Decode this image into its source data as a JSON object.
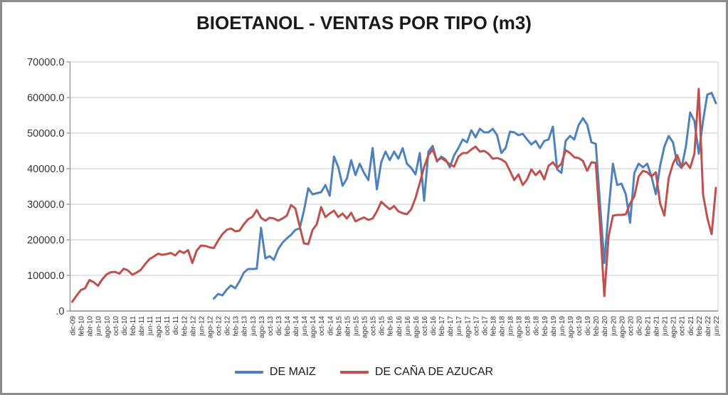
{
  "title": "BIOETANOL - VENTAS POR TIPO (m3)",
  "legend": {
    "items": [
      {
        "label": "DE MAIZ",
        "color": "#4F81BD"
      },
      {
        "label": "DE CAÑA DE AZUCAR",
        "color": "#C0504D"
      }
    ]
  },
  "y_axis": {
    "labels": [
      "70000.0",
      "60000.0",
      "50000.0",
      "40000.0",
      "30000.0",
      "20000.0",
      "10000.0",
      ".0"
    ],
    "values": [
      70000,
      60000,
      50000,
      40000,
      30000,
      20000,
      10000,
      0
    ]
  },
  "x_axis": {
    "labels": [
      "dic-09",
      "feb-10",
      "abr-10",
      "jun-10",
      "ago-10",
      "oct-10",
      "dic-10",
      "feb-11",
      "abr-11",
      "jun-11",
      "ago-11",
      "oct-11",
      "dic-11",
      "feb-12",
      "abr-12",
      "jun-12",
      "ago-12",
      "oct-12",
      "dic-12",
      "feb-13",
      "abr-13",
      "jun-13",
      "ago-13",
      "oct-13",
      "dic-13",
      "feb-14",
      "abr-14",
      "jun-14",
      "ago-14",
      "oct-14",
      "dic-14",
      "feb-15",
      "abr-15",
      "jun-15",
      "ago-15",
      "oct-15",
      "dic-15",
      "feb-16",
      "abr-16",
      "jun-16",
      "ago-16",
      "oct-16",
      "dic-16",
      "feb-17",
      "abr-17",
      "jun-17",
      "ago-17",
      "oct-17",
      "dic-17",
      "feb-18",
      "abr-18",
      "jun-18",
      "ago-18",
      "oct-18",
      "dic-18",
      "feb-19",
      "abr-19",
      "jun-19",
      "ago-19",
      "oct-19",
      "dic-19",
      "feb-20",
      "abr-20",
      "jun-20",
      "ago-20",
      "oct-20",
      "dic-20",
      "feb-21",
      "abr-21",
      "jun-21",
      "ago-21",
      "oct-21",
      "dic-21",
      "feb-22",
      "abr-22",
      "jun-22"
    ]
  },
  "chart_data": {
    "type": "line",
    "title": "BIOETANOL - VENTAS POR TIPO (m3)",
    "x_frequency": "monthly",
    "x_start": "dic-09",
    "x_end": "jun-22",
    "ylim": [
      0,
      70000
    ],
    "y_major_step": 10000,
    "grid": true,
    "legend_position": "bottom",
    "months": [
      "dic-09",
      "ene-10",
      "feb-10",
      "mar-10",
      "abr-10",
      "may-10",
      "jun-10",
      "jul-10",
      "ago-10",
      "sep-10",
      "oct-10",
      "nov-10",
      "dic-10",
      "ene-11",
      "feb-11",
      "mar-11",
      "abr-11",
      "may-11",
      "jun-11",
      "jul-11",
      "ago-11",
      "sep-11",
      "oct-11",
      "nov-11",
      "dic-11",
      "ene-12",
      "feb-12",
      "mar-12",
      "abr-12",
      "may-12",
      "jun-12",
      "jul-12",
      "ago-12",
      "sep-12",
      "oct-12",
      "nov-12",
      "dic-12",
      "ene-13",
      "feb-13",
      "mar-13",
      "abr-13",
      "may-13",
      "jun-13",
      "jul-13",
      "ago-13",
      "sep-13",
      "oct-13",
      "nov-13",
      "dic-13",
      "ene-14",
      "feb-14",
      "mar-14",
      "abr-14",
      "may-14",
      "jun-14",
      "jul-14",
      "ago-14",
      "sep-14",
      "oct-14",
      "nov-14",
      "dic-14",
      "ene-15",
      "feb-15",
      "mar-15",
      "abr-15",
      "may-15",
      "jun-15",
      "jul-15",
      "ago-15",
      "sep-15",
      "oct-15",
      "nov-15",
      "dic-15",
      "ene-16",
      "feb-16",
      "mar-16",
      "abr-16",
      "may-16",
      "jun-16",
      "jul-16",
      "ago-16",
      "sep-16",
      "oct-16",
      "nov-16",
      "dic-16",
      "ene-17",
      "feb-17",
      "mar-17",
      "abr-17",
      "may-17",
      "jun-17",
      "jul-17",
      "ago-17",
      "sep-17",
      "oct-17",
      "nov-17",
      "dic-17",
      "ene-18",
      "feb-18",
      "mar-18",
      "abr-18",
      "may-18",
      "jun-18",
      "jul-18",
      "ago-18",
      "sep-18",
      "oct-18",
      "nov-18",
      "dic-18",
      "ene-19",
      "feb-19",
      "mar-19",
      "abr-19",
      "may-19",
      "jun-19",
      "jul-19",
      "ago-19",
      "sep-19",
      "oct-19",
      "nov-19",
      "dic-19",
      "ene-20",
      "feb-20",
      "mar-20",
      "abr-20",
      "may-20",
      "jun-20",
      "jul-20",
      "ago-20",
      "sep-20",
      "oct-20",
      "nov-20",
      "dic-20",
      "ene-21",
      "feb-21",
      "mar-21",
      "abr-21",
      "may-21",
      "jun-21",
      "jul-21",
      "ago-21",
      "sep-21",
      "oct-21",
      "nov-21",
      "dic-21",
      "ene-22",
      "feb-22",
      "mar-22",
      "abr-22",
      "may-22",
      "jun-22"
    ],
    "series": [
      {
        "name": "DE MAIZ",
        "color": "#4F81BD",
        "values": [
          null,
          null,
          null,
          null,
          null,
          null,
          null,
          null,
          null,
          null,
          null,
          null,
          null,
          null,
          null,
          null,
          null,
          null,
          null,
          null,
          null,
          null,
          null,
          null,
          null,
          null,
          null,
          null,
          null,
          null,
          null,
          null,
          null,
          3500,
          4800,
          4400,
          6000,
          7200,
          6400,
          8400,
          10800,
          11800,
          11800,
          11900,
          23400,
          14800,
          15400,
          14400,
          17400,
          19200,
          20400,
          21400,
          22800,
          23200,
          28200,
          34500,
          32800,
          33100,
          33400,
          35400,
          32400,
          43400,
          40400,
          35200,
          37200,
          42400,
          38200,
          41400,
          38800,
          36800,
          45800,
          34200,
          41800,
          44800,
          42400,
          44800,
          42800,
          45800,
          41400,
          40200,
          38400,
          44400,
          31000,
          44800,
          46400,
          42000,
          43400,
          42600,
          40400,
          43800,
          45800,
          48200,
          47400,
          50800,
          48800,
          51200,
          50200,
          50200,
          51200,
          49400,
          44400,
          45800,
          50400,
          50200,
          49400,
          49800,
          48200,
          46800,
          47800,
          45800,
          47800,
          48200,
          51800,
          39800,
          38800,
          47800,
          49200,
          48200,
          52200,
          54200,
          52400,
          47400,
          47000,
          30000,
          13500,
          28200,
          41400,
          35400,
          35800,
          32800,
          24800,
          38800,
          41400,
          40400,
          41400,
          37800,
          32800,
          40800,
          46200,
          49200,
          47400,
          41400,
          40200,
          46200,
          55800,
          53400,
          44200,
          53400,
          60800,
          61300,
          58400
        ]
      },
      {
        "name": "DE CAÑA DE AZUCAR",
        "color": "#C0504D",
        "values": [
          2600,
          4300,
          5900,
          6400,
          8700,
          8100,
          7100,
          8900,
          10300,
          10900,
          11000,
          10500,
          11900,
          11400,
          10200,
          10800,
          11600,
          13200,
          14600,
          15300,
          16100,
          15800,
          16000,
          16300,
          15600,
          16900,
          16300,
          17100,
          13500,
          17000,
          18400,
          18300,
          17900,
          17700,
          19800,
          21600,
          22800,
          23200,
          22400,
          22600,
          24400,
          25800,
          26500,
          28400,
          26200,
          25400,
          26200,
          26000,
          25400,
          26000,
          26800,
          29800,
          28800,
          23800,
          19000,
          18800,
          22800,
          24400,
          29200,
          26400,
          27400,
          28200,
          26400,
          27400,
          26000,
          27600,
          25200,
          25800,
          26300,
          25600,
          26000,
          28000,
          30700,
          29600,
          28600,
          29500,
          28000,
          27500,
          27200,
          28600,
          31800,
          36000,
          40500,
          43800,
          45400,
          42300,
          43000,
          42200,
          41200,
          40600,
          43400,
          44400,
          44400,
          45400,
          46200,
          44800,
          45000,
          44200,
          42800,
          43000,
          42600,
          41800,
          39400,
          36800,
          38400,
          35400,
          37000,
          39800,
          38200,
          39400,
          37000,
          40800,
          41800,
          40200,
          41400,
          45200,
          44400,
          43200,
          43000,
          42200,
          39400,
          41800,
          41600,
          24200,
          4200,
          21000,
          26800,
          27000,
          27000,
          27200,
          30200,
          32200,
          37800,
          39400,
          39000,
          37800,
          39000,
          30200,
          26800,
          37400,
          41400,
          43800,
          40400,
          41800,
          40200,
          44200,
          62400,
          32800,
          26200,
          21600,
          34600
        ]
      }
    ]
  },
  "style": {
    "gridline_color": "#c9c9c9",
    "axis_color": "#8c8c8c",
    "tick_label_color": "#333333",
    "frame_border_color": "#8c8c8c",
    "background": "#ffffff"
  }
}
